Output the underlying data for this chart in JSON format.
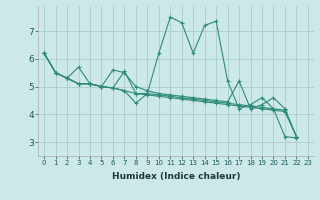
{
  "title": "",
  "xlabel": "Humidex (Indice chaleur)",
  "bg_color": "#cce8e8",
  "grid_color": "#aacccc",
  "line_color": "#2e8b7a",
  "xlim": [
    -0.5,
    23.5
  ],
  "ylim": [
    2.5,
    7.9
  ],
  "yticks": [
    3,
    4,
    5,
    6,
    7
  ],
  "xticks": [
    0,
    1,
    2,
    3,
    4,
    5,
    6,
    7,
    8,
    9,
    10,
    11,
    12,
    13,
    14,
    15,
    16,
    17,
    18,
    19,
    20,
    21,
    22,
    23
  ],
  "series": [
    [
      6.2,
      5.5,
      5.3,
      5.7,
      5.1,
      5.0,
      5.6,
      5.5,
      5.0,
      4.85,
      4.75,
      4.7,
      4.65,
      4.6,
      4.55,
      4.5,
      4.45,
      5.2,
      4.2,
      4.35,
      4.6,
      4.2,
      3.2
    ],
    [
      6.2,
      5.5,
      5.3,
      5.1,
      5.1,
      5.0,
      4.95,
      5.55,
      4.75,
      4.75,
      6.2,
      7.5,
      7.3,
      6.2,
      7.2,
      7.35,
      5.2,
      4.2,
      4.35,
      4.6,
      4.2,
      3.2,
      3.15
    ],
    [
      6.2,
      5.5,
      5.3,
      5.1,
      5.1,
      5.0,
      4.95,
      4.85,
      4.4,
      4.75,
      4.7,
      4.65,
      4.6,
      4.55,
      4.5,
      4.45,
      4.4,
      4.35,
      4.3,
      4.25,
      4.2,
      4.15,
      3.2
    ],
    [
      6.2,
      5.5,
      5.3,
      5.1,
      5.1,
      5.0,
      4.95,
      4.85,
      4.75,
      4.7,
      4.65,
      4.6,
      4.55,
      4.5,
      4.45,
      4.4,
      4.35,
      4.3,
      4.25,
      4.2,
      4.15,
      4.1,
      3.2
    ]
  ],
  "xlabel_fontsize": 6.5,
  "xlabel_fontweight": "bold",
  "ytick_fontsize": 6.5,
  "xtick_fontsize": 5.0
}
